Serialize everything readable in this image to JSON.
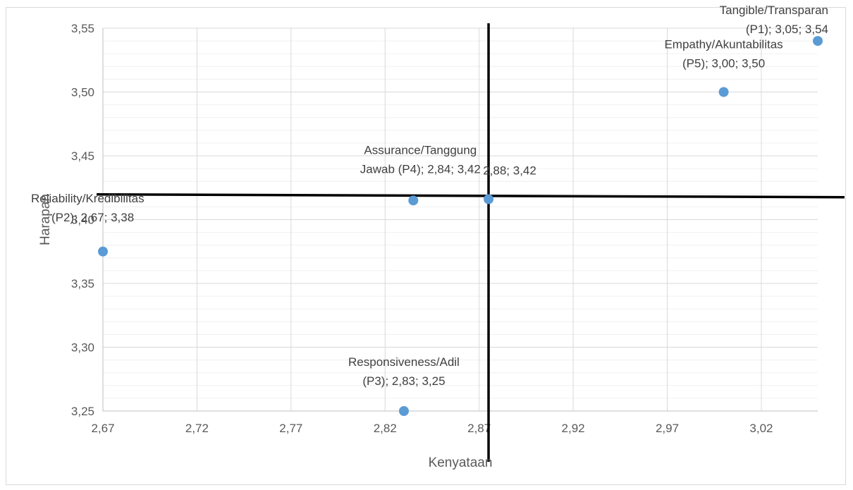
{
  "chart_data": {
    "type": "scatter",
    "xlabel": "Kenyataan",
    "ylabel": "Harapan",
    "xlim": [
      2.67,
      3.05
    ],
    "ylim": [
      3.25,
      3.55
    ],
    "x_ticks": [
      "2,67",
      "2,72",
      "2,77",
      "2,82",
      "2,87",
      "2,92",
      "2,97",
      "3,02"
    ],
    "y_ticks": [
      "3,25",
      "3,30",
      "3,35",
      "3,40",
      "3,45",
      "3,50",
      "3,55"
    ],
    "grid": true,
    "marker_color": "#5b9bd5",
    "divider_lines": {
      "x": 2.875,
      "y": 3.417
    },
    "points": [
      {
        "x": 3.05,
        "y": 3.54,
        "label": [
          "Tangible/Transparan",
          "(P1); 3,05; 3,54"
        ]
      },
      {
        "x": 2.67,
        "y": 3.375,
        "label": [
          "Reliability/Kredibilitas",
          "(P2); 2,67; 3,38"
        ]
      },
      {
        "x": 2.83,
        "y": 3.25,
        "label": [
          "Responsiveness/Adil",
          "(P3); 2,83; 3,25"
        ]
      },
      {
        "x": 2.835,
        "y": 3.415,
        "label": [
          "Assurance/Tanggung",
          "Jawab (P4); 2,84; 3,42"
        ]
      },
      {
        "x": 3.0,
        "y": 3.5,
        "label": [
          "Empathy/Akuntabilitas",
          "(P5); 3,00; 3,50"
        ]
      },
      {
        "x": 2.875,
        "y": 3.416,
        "label": [
          "2,88; 3,42"
        ]
      }
    ]
  }
}
